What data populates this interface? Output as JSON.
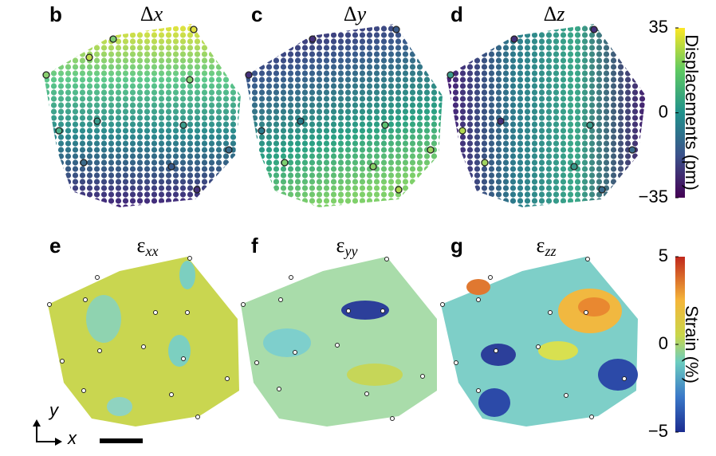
{
  "panels": [
    {
      "letter": "b",
      "title": {
        "symbol": "Δ",
        "variable": "x"
      }
    },
    {
      "letter": "c",
      "title": {
        "symbol": "Δ",
        "variable": "y"
      }
    },
    {
      "letter": "d",
      "title": {
        "symbol": "Δ",
        "variable": "z"
      }
    },
    {
      "letter": "e",
      "title": {
        "symbol": "ε",
        "variable": "xx"
      }
    },
    {
      "letter": "f",
      "title": {
        "symbol": "ε",
        "variable": "yy"
      }
    },
    {
      "letter": "g",
      "title": {
        "symbol": "ε",
        "variable": "zz"
      }
    }
  ],
  "colorbars": [
    {
      "label": "Displacements (pm)",
      "lim": [
        -35,
        35
      ],
      "ticks": [
        35,
        0,
        {
          "value": -35,
          "label": "−35"
        }
      ]
    },
    {
      "label": "Strain (%)",
      "lim": [
        -5,
        5
      ],
      "ticks": [
        5,
        0,
        {
          "value": -5,
          "label": "−5"
        }
      ]
    }
  ],
  "axes_indicator": {
    "y": "y",
    "x": "x"
  }
}
